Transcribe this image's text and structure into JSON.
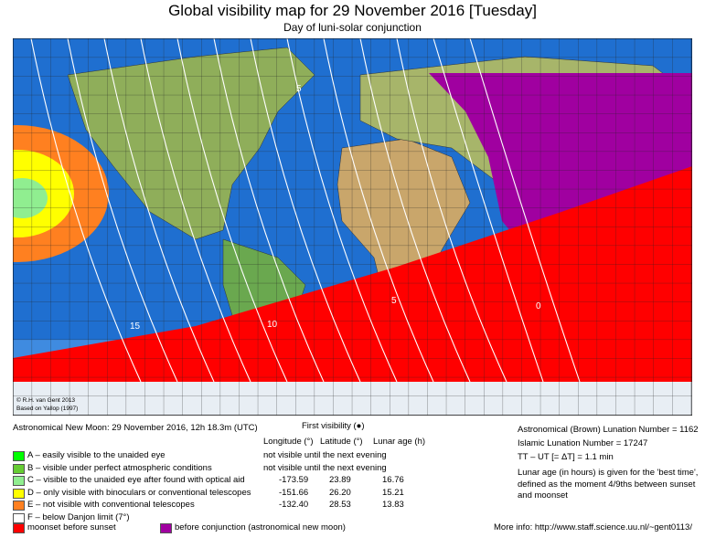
{
  "header": {
    "title": "Global visibility map for 29 November 2016 [Tuesday]",
    "subtitle": "Day of luni-solar conjunction"
  },
  "map": {
    "credit": "© R.H. van Gent 2013",
    "credit_source": "Based on Yallop (1997)",
    "contour_labels": [
      "15",
      "10",
      "5",
      "0",
      "5"
    ]
  },
  "legend": {
    "new_moon": "Astronomical New Moon: 29 November 2016, 12h 18.3m (UTC)",
    "first_visibility": "First visibility (●)",
    "columns": [
      "Longitude (°)",
      "Latitude (°)",
      "Lunar age (h)"
    ],
    "rows": [
      {
        "label": "A – easily visible to the unaided eye",
        "note": "not visible until the next evening"
      },
      {
        "label": "B – visible under perfect atmospheric conditions",
        "note": "not visible until the next evening"
      },
      {
        "label": "C – visible to the unaided eye after found with optical aid",
        "cells": [
          "-173.59",
          "23.89",
          "16.76"
        ]
      },
      {
        "label": "D – only visible with binoculars or conventional telescopes",
        "cells": [
          "-151.66",
          "26.20",
          "15.21"
        ]
      },
      {
        "label": "E – not visible with conventional telescopes",
        "cells": [
          "-132.40",
          "28.53",
          "13.83"
        ]
      },
      {
        "label": "F – below Danjon limit (7°)"
      }
    ],
    "moonset": "moonset before sunset",
    "before_conjunction": "before conjunction (astronomical new moon)"
  },
  "info": {
    "brown": "Astronomical (Brown) Lunation Number = 1162",
    "islamic": "Islamic Lunation Number = 17247",
    "delta_t": "TT – UT [= ΔT] = 1.1 min",
    "note": "Lunar age (in hours) is given for the 'best time', defined as the moment 4/9ths between sunset and moonset",
    "more": "More info: http://www.staff.science.uu.nl/~gent0113/"
  }
}
